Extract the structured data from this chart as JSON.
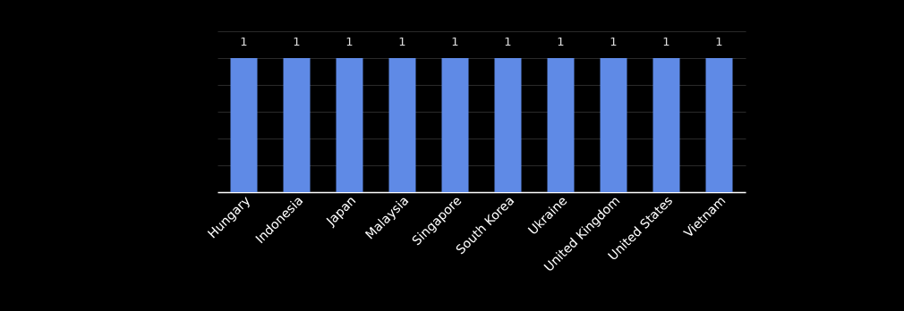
{
  "chart_data": {
    "type": "bar",
    "categories": [
      "Hungary",
      "Indonesia",
      "Japan",
      "Malaysia",
      "Singapore",
      "South Korea",
      "Ukraine",
      "United Kingdom",
      "United States",
      "Vietnam"
    ],
    "values": [
      1,
      1,
      1,
      1,
      1,
      1,
      1,
      1,
      1,
      1
    ],
    "color": "#5f8ae6",
    "ylim": [
      0,
      1.2
    ],
    "grid": "y",
    "tick_labels": "x",
    "data_labels": true
  }
}
